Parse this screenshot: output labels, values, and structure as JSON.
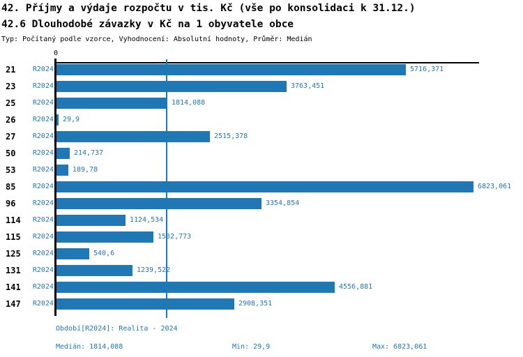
{
  "header": {
    "title_line1": "42. Příjmy a výdaje rozpočtu v tis. Kč (vše po konsolidaci k 31.12.)",
    "title_line2": "42.6 Dlouhodobé závazky v Kč na 1 obyvatele obce",
    "meta": "Typ: Počítaný podle vzorce, Vyhodnocení: Absolutní hodnoty, Průměr: Medián"
  },
  "chart_data": {
    "type": "bar",
    "orientation": "horizontal",
    "title": "42.6 Dlouhodobé závazky v Kč na 1 obyvatele obce",
    "xlabel": "",
    "ylabel": "",
    "x_origin_label": "0",
    "xlim": [
      0,
      6900
    ],
    "grid": "median-line-only",
    "legend_position": "none",
    "bar_color": "#1f77b4",
    "text_blue": "#1f77b4",
    "median_value": 1814.088,
    "min_value": 29.9,
    "max_value": 6823.061,
    "categories": [
      "21",
      "23",
      "25",
      "26",
      "27",
      "50",
      "53",
      "85",
      "96",
      "114",
      "115",
      "125",
      "131",
      "141",
      "147"
    ],
    "series": [
      {
        "name": "R2024",
        "values": [
          5716.371,
          3763.451,
          1814.088,
          29.9,
          2515.378,
          214.737,
          189.78,
          6823.061,
          3354.854,
          1124.534,
          1582.773,
          540.6,
          1239.522,
          4556.881,
          2908.351
        ]
      }
    ],
    "rows": [
      {
        "id": "21",
        "period": "R2024",
        "value": 5716.371,
        "label": "5716,371"
      },
      {
        "id": "23",
        "period": "R2024",
        "value": 3763.451,
        "label": "3763,451"
      },
      {
        "id": "25",
        "period": "R2024",
        "value": 1814.088,
        "label": "1814,088"
      },
      {
        "id": "26",
        "period": "R2024",
        "value": 29.9,
        "label": "29,9"
      },
      {
        "id": "27",
        "period": "R2024",
        "value": 2515.378,
        "label": "2515,378"
      },
      {
        "id": "50",
        "period": "R2024",
        "value": 214.737,
        "label": "214,737"
      },
      {
        "id": "53",
        "period": "R2024",
        "value": 189.78,
        "label": "189,78"
      },
      {
        "id": "85",
        "period": "R2024",
        "value": 6823.061,
        "label": "6823,061"
      },
      {
        "id": "96",
        "period": "R2024",
        "value": 3354.854,
        "label": "3354,854"
      },
      {
        "id": "114",
        "period": "R2024",
        "value": 1124.534,
        "label": "1124,534"
      },
      {
        "id": "115",
        "period": "R2024",
        "value": 1582.773,
        "label": "1582,773"
      },
      {
        "id": "125",
        "period": "R2024",
        "value": 540.6,
        "label": "540,6"
      },
      {
        "id": "131",
        "period": "R2024",
        "value": 1239.522,
        "label": "1239,522"
      },
      {
        "id": "141",
        "period": "R2024",
        "value": 4556.881,
        "label": "4556,881"
      },
      {
        "id": "147",
        "period": "R2024",
        "value": 2908.351,
        "label": "2908,351"
      }
    ]
  },
  "footer": {
    "period_line": "Období[R2024]: Realita - 2024",
    "median": "Medián: 1814,088",
    "min": "Min: 29,9",
    "max": "Max: 6823,061"
  }
}
